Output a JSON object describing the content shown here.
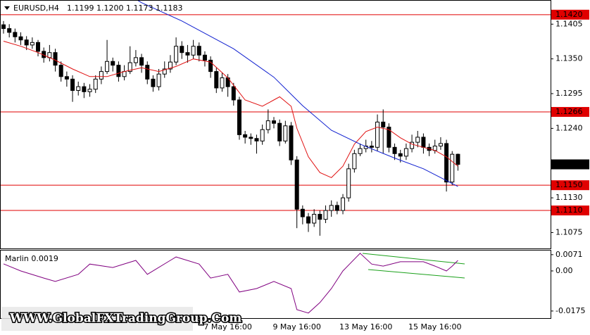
{
  "chart_data": [
    {
      "type": "candlestick",
      "header": "EURUSD,H4",
      "ohlc_text": "1.1199 1.1200 1.1173 1.1183",
      "categories": [
        null,
        null,
        null,
        null,
        null,
        null,
        null,
        null,
        null,
        null,
        null,
        null,
        null,
        null,
        null,
        null,
        null,
        null,
        null,
        null,
        null,
        null,
        null,
        null,
        null,
        null,
        null,
        null,
        null,
        null,
        null,
        null,
        null,
        null,
        null,
        null,
        null,
        null,
        null,
        "7 May 16:00",
        null,
        null,
        null,
        null,
        null,
        null,
        null,
        null,
        null,
        null,
        null,
        "9 May 16:00",
        null,
        null,
        null,
        null,
        null,
        null,
        null,
        null,
        null,
        null,
        null,
        "13 May 16:00",
        null,
        null,
        null,
        null,
        null,
        null,
        null,
        null,
        null,
        null,
        null,
        "15 May 16:00",
        null,
        null,
        null,
        null
      ],
      "open": [
        1.1404,
        1.1398,
        1.1392,
        1.1385,
        1.138,
        1.1372,
        1.1376,
        1.1362,
        1.1352,
        1.136,
        1.134,
        1.1322,
        1.1318,
        1.13,
        1.1306,
        1.1298,
        1.1302,
        1.1318,
        1.133,
        1.1346,
        1.134,
        1.1322,
        1.133,
        1.1344,
        1.1352,
        1.134,
        1.1318,
        1.1306,
        1.1326,
        1.1334,
        1.1345,
        1.137,
        1.136,
        1.1356,
        1.137,
        1.1356,
        1.1348,
        1.133,
        1.1304,
        1.132,
        1.1306,
        1.1285,
        1.123,
        1.1226,
        1.1224,
        1.122,
        1.1238,
        1.1252,
        1.1248,
        1.122,
        1.1244,
        1.119,
        1.1112,
        1.11,
        1.109,
        1.1104,
        1.1096,
        1.111,
        1.1118,
        1.111,
        1.113,
        1.1176,
        1.12,
        1.1208,
        1.1212,
        1.121,
        1.125,
        1.1242,
        1.121,
        1.12,
        1.1196,
        1.1208,
        1.1218,
        1.1226,
        1.121,
        1.1205,
        1.1212,
        1.1216,
        1.1155,
        1.1199
      ],
      "high": [
        1.141,
        1.1405,
        1.1398,
        1.1392,
        1.1386,
        1.1384,
        1.138,
        1.1368,
        1.1372,
        1.1366,
        1.1346,
        1.133,
        1.1324,
        1.1314,
        1.1312,
        1.131,
        1.1324,
        1.1338,
        1.138,
        1.1352,
        1.1346,
        1.134,
        1.137,
        1.1364,
        1.1358,
        1.1346,
        1.1324,
        1.1334,
        1.1346,
        1.1356,
        1.1384,
        1.1378,
        1.1372,
        1.138,
        1.1376,
        1.1362,
        1.1354,
        1.1336,
        1.1328,
        1.1326,
        1.1312,
        1.129,
        1.1236,
        1.1232,
        1.123,
        1.1246,
        1.127,
        1.1258,
        1.1254,
        1.1252,
        1.125,
        1.1196,
        1.1118,
        1.1106,
        1.1112,
        1.111,
        1.1118,
        1.1126,
        1.1124,
        1.1136,
        1.1184,
        1.1206,
        1.1216,
        1.1222,
        1.122,
        1.1262,
        1.127,
        1.1248,
        1.1216,
        1.1206,
        1.1216,
        1.123,
        1.1236,
        1.1232,
        1.1216,
        1.1222,
        1.1226,
        1.1222,
        1.1204,
        1.12
      ],
      "low": [
        1.139,
        1.1384,
        1.1376,
        1.1372,
        1.1364,
        1.1366,
        1.1354,
        1.1344,
        1.1346,
        1.133,
        1.1314,
        1.1306,
        1.1282,
        1.1292,
        1.1288,
        1.129,
        1.1296,
        1.131,
        1.1326,
        1.133,
        1.1314,
        1.1316,
        1.1326,
        1.1338,
        1.1328,
        1.131,
        1.1298,
        1.13,
        1.132,
        1.1328,
        1.134,
        1.135,
        1.1344,
        1.135,
        1.1346,
        1.1338,
        1.132,
        1.1296,
        1.1298,
        1.129,
        1.1276,
        1.1222,
        1.1216,
        1.1214,
        1.12,
        1.1214,
        1.1232,
        1.124,
        1.1212,
        1.1216,
        1.1182,
        1.1082,
        1.1088,
        1.1076,
        1.1084,
        1.107,
        1.109,
        1.11,
        1.1104,
        1.1104,
        1.1124,
        1.117,
        1.1196,
        1.1202,
        1.1202,
        1.1204,
        1.12,
        1.1202,
        1.119,
        1.1186,
        1.119,
        1.1202,
        1.121,
        1.12,
        1.1196,
        1.12,
        1.1206,
        1.114,
        1.115,
        1.1173
      ],
      "close": [
        1.1398,
        1.1392,
        1.1385,
        1.138,
        1.1372,
        1.1376,
        1.1362,
        1.1352,
        1.136,
        1.134,
        1.1322,
        1.1318,
        1.13,
        1.1306,
        1.1298,
        1.1302,
        1.1318,
        1.133,
        1.1346,
        1.134,
        1.1322,
        1.133,
        1.1344,
        1.1352,
        1.134,
        1.1318,
        1.1306,
        1.1326,
        1.1334,
        1.1345,
        1.137,
        1.136,
        1.1356,
        1.137,
        1.1356,
        1.1348,
        1.133,
        1.1304,
        1.132,
        1.1306,
        1.1285,
        1.123,
        1.1226,
        1.1224,
        1.122,
        1.1238,
        1.1252,
        1.1248,
        1.122,
        1.1244,
        1.119,
        1.1112,
        1.11,
        1.109,
        1.1104,
        1.1096,
        1.111,
        1.1118,
        1.111,
        1.113,
        1.1176,
        1.12,
        1.1208,
        1.1212,
        1.121,
        1.125,
        1.1242,
        1.121,
        1.12,
        1.1196,
        1.1208,
        1.1218,
        1.1226,
        1.121,
        1.1205,
        1.1212,
        1.1216,
        1.1155,
        1.1199,
        1.1183
      ],
      "up_color": "#ffffff",
      "down_color": "#000000",
      "lines": [
        {
          "color": "#e01010",
          "x": [
            0,
            3,
            6,
            9,
            12,
            15,
            18,
            21,
            24,
            27,
            30,
            33,
            36,
            39,
            42,
            45,
            47,
            48,
            50,
            51,
            53,
            55,
            57,
            59,
            61,
            63,
            65,
            67,
            69,
            71,
            73,
            75,
            77,
            79
          ],
          "values": [
            1.1378,
            1.137,
            1.136,
            1.1348,
            1.1334,
            1.1322,
            1.1322,
            1.133,
            1.1336,
            1.133,
            1.1338,
            1.135,
            1.1345,
            1.132,
            1.1285,
            1.1275,
            1.1285,
            1.129,
            1.1275,
            1.124,
            1.1195,
            1.117,
            1.1162,
            1.118,
            1.1215,
            1.1235,
            1.1242,
            1.1238,
            1.1225,
            1.1215,
            1.121,
            1.1205,
            1.1195,
            1.118
          ]
        },
        {
          "color": "#1020d0",
          "x": [
            22,
            24,
            31,
            40,
            47,
            52,
            57,
            62,
            68,
            73,
            79
          ],
          "values": [
            1.145,
            1.1439,
            1.141,
            1.1366,
            1.1321,
            1.1276,
            1.1237,
            1.1215,
            1.1193,
            1.1176,
            1.1148
          ]
        }
      ],
      "levels": [
        {
          "value": 1.142,
          "label": "1.1420"
        },
        1.1266,
        {
          "value": 1.115,
          "label": "1.1150"
        },
        {
          "value": 1.111,
          "label": "1.1110"
        }
      ],
      "level_color": "#e00000",
      "last_price": 1.1183,
      "ylim": [
        1.1051,
        1.1441
      ],
      "yticks": [
        1.1405,
        {
          "value": 1.135,
          "label": "1.1350"
        },
        1.1295,
        {
          "value": 1.124,
          "label": "1.1240"
        },
        {
          "value": 1.113,
          "label": "1.1130"
        },
        1.1075
      ]
    },
    {
      "type": "line",
      "title": "Marlin 0.0019",
      "x": [
        0,
        3,
        7,
        9,
        13,
        15,
        19,
        23,
        25,
        29,
        30,
        34,
        36,
        39,
        41,
        44,
        47,
        50,
        51,
        53,
        55,
        57,
        59,
        62,
        64,
        66,
        69,
        73,
        75,
        77,
        78,
        79
      ],
      "values": [
        0.0031,
        0,
        -0.0031,
        -0.0046,
        -0.0015,
        0.003,
        0.0015,
        0.0046,
        -0.0015,
        0.0046,
        0.0061,
        0.003,
        -0.0031,
        -0.0015,
        -0.0092,
        -0.0077,
        -0.0046,
        -0.0077,
        -0.0169,
        -0.0184,
        -0.0138,
        -0.0077,
        0,
        0.0077,
        0.003,
        0.0021,
        0.004,
        0.004,
        0.0021,
        0,
        0.0021,
        0.0046
      ],
      "color": "#800080",
      "ylim": [
        -0.0206,
        0.0089
      ],
      "yticks": [
        0.0071,
        {
          "value": 0,
          "label": "0.00"
        },
        -0.0175
      ]
    }
  ],
  "watermark": "WWW.GlobalFXTradingGroup.Com"
}
